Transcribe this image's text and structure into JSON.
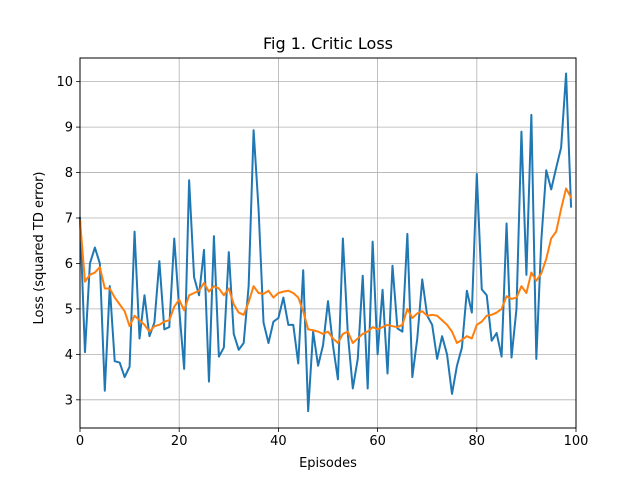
{
  "chart_data": {
    "type": "line",
    "title": "Fig 1. Critic Loss",
    "xlabel": "Episodes",
    "ylabel": "Loss (squared TD error)",
    "xlim": [
      0,
      100
    ],
    "ylim": [
      2.38,
      10.52
    ],
    "xticks": [
      0,
      20,
      40,
      60,
      80,
      100
    ],
    "yticks": [
      3,
      4,
      5,
      6,
      7,
      8,
      9,
      10
    ],
    "grid": true,
    "legend": "none",
    "series": [
      {
        "color": "#1f77b4",
        "x": [
          0,
          1,
          2,
          3,
          4,
          5,
          6,
          7,
          8,
          9,
          10,
          11,
          12,
          13,
          14,
          15,
          16,
          17,
          18,
          19,
          20,
          21,
          22,
          23,
          24,
          25,
          26,
          27,
          28,
          29,
          30,
          31,
          32,
          33,
          34,
          35,
          36,
          37,
          38,
          39,
          40,
          41,
          42,
          43,
          44,
          45,
          46,
          47,
          48,
          49,
          50,
          51,
          52,
          53,
          54,
          55,
          56,
          57,
          58,
          59,
          60,
          61,
          62,
          63,
          64,
          65,
          66,
          67,
          68,
          69,
          70,
          71,
          72,
          73,
          74,
          75,
          76,
          77,
          78,
          79,
          80,
          81,
          82,
          83,
          84,
          85,
          86,
          87,
          88,
          89,
          90,
          91,
          92,
          93,
          94,
          95,
          96,
          97,
          98,
          99
        ],
        "y": [
          7.0,
          4.05,
          6.0,
          6.35,
          6.0,
          3.2,
          5.5,
          3.85,
          3.82,
          3.5,
          3.73,
          6.7,
          4.35,
          5.3,
          4.4,
          4.7,
          6.05,
          4.55,
          4.6,
          6.55,
          5.0,
          3.68,
          7.83,
          5.7,
          5.3,
          6.3,
          3.4,
          6.6,
          3.95,
          4.15,
          6.25,
          4.45,
          4.1,
          4.25,
          5.5,
          8.93,
          7.2,
          4.7,
          4.25,
          4.72,
          4.8,
          5.25,
          4.65,
          4.65,
          3.8,
          5.85,
          2.75,
          4.5,
          3.75,
          4.2,
          5.17,
          4.2,
          3.45,
          6.55,
          4.45,
          3.25,
          3.9,
          5.73,
          3.25,
          6.48,
          4.0,
          5.42,
          3.58,
          5.95,
          4.57,
          4.5,
          6.65,
          3.5,
          4.35,
          5.65,
          4.85,
          4.65,
          3.9,
          4.4,
          4.0,
          3.13,
          3.75,
          4.15,
          5.4,
          4.92,
          7.97,
          5.43,
          5.3,
          4.3,
          4.47,
          3.95,
          6.88,
          3.93,
          5.0,
          8.9,
          5.75,
          9.27,
          3.9,
          6.5,
          8.05,
          7.63,
          8.1,
          8.55,
          10.18,
          7.25
        ]
      },
      {
        "color": "#ff7f0e",
        "x": [
          0,
          1,
          2,
          3,
          4,
          5,
          6,
          7,
          8,
          9,
          10,
          11,
          12,
          13,
          14,
          15,
          16,
          17,
          18,
          19,
          20,
          21,
          22,
          23,
          24,
          25,
          26,
          27,
          28,
          29,
          30,
          31,
          32,
          33,
          34,
          35,
          36,
          37,
          38,
          39,
          40,
          41,
          42,
          43,
          44,
          45,
          46,
          47,
          48,
          49,
          50,
          51,
          52,
          53,
          54,
          55,
          56,
          57,
          58,
          59,
          60,
          61,
          62,
          63,
          64,
          65,
          66,
          67,
          68,
          69,
          70,
          71,
          72,
          73,
          74,
          75,
          76,
          77,
          78,
          79,
          80,
          81,
          82,
          83,
          84,
          85,
          86,
          87,
          88,
          89,
          90,
          91,
          92,
          93,
          94,
          95,
          96,
          97,
          98,
          99
        ],
        "y": [
          6.95,
          5.6,
          5.75,
          5.8,
          5.92,
          5.45,
          5.45,
          5.25,
          5.1,
          4.95,
          4.62,
          4.85,
          4.75,
          4.65,
          4.5,
          4.62,
          4.65,
          4.72,
          4.75,
          5.05,
          5.2,
          4.97,
          5.3,
          5.35,
          5.4,
          5.57,
          5.38,
          5.5,
          5.45,
          5.3,
          5.45,
          5.1,
          4.92,
          4.87,
          5.15,
          5.5,
          5.35,
          5.33,
          5.4,
          5.25,
          5.35,
          5.38,
          5.4,
          5.35,
          5.25,
          4.95,
          4.55,
          4.53,
          4.5,
          4.45,
          4.5,
          4.35,
          4.25,
          4.45,
          4.5,
          4.25,
          4.35,
          4.45,
          4.5,
          4.6,
          4.55,
          4.6,
          4.65,
          4.62,
          4.6,
          4.65,
          5.0,
          4.8,
          4.9,
          4.95,
          4.85,
          4.87,
          4.85,
          4.75,
          4.65,
          4.5,
          4.25,
          4.32,
          4.4,
          4.35,
          4.65,
          4.72,
          4.85,
          4.87,
          4.92,
          5.0,
          5.28,
          5.22,
          5.25,
          5.5,
          5.35,
          5.8,
          5.62,
          5.78,
          6.1,
          6.55,
          6.7,
          7.2,
          7.65,
          7.45
        ]
      }
    ]
  }
}
